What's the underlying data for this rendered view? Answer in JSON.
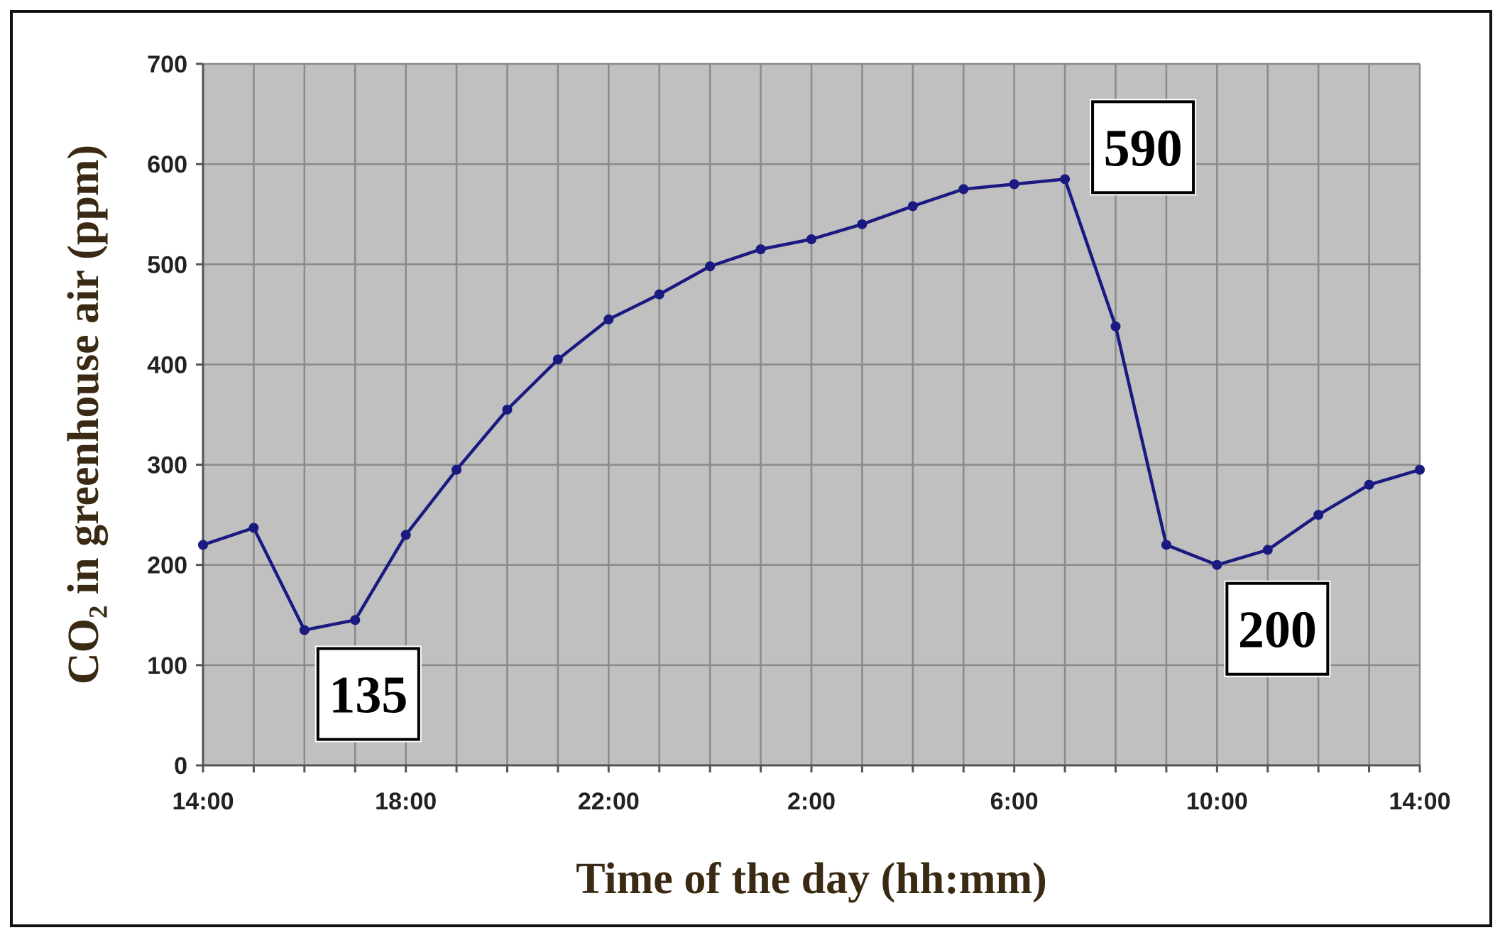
{
  "chart_data": {
    "type": "line",
    "xlabel": "Time of the day (hh:mm)",
    "ylabel": "CO₂ in greenhouse air (ppm)",
    "ylim": [
      0,
      700
    ],
    "yticks": [
      0,
      100,
      200,
      300,
      400,
      500,
      600,
      700
    ],
    "xtick_labels": [
      "14:00",
      "18:00",
      "22:00",
      "2:00",
      "6:00",
      "10:00",
      "14:00"
    ],
    "x_hours_elapsed_from_first_label": [
      0,
      4,
      8,
      12,
      16,
      20,
      24
    ],
    "grid": true,
    "plot_background": "#c0c0c0",
    "grid_color": "#8a8a8a",
    "series": [
      {
        "color": "#1a1a80",
        "x": [
          "14:00",
          "15:00",
          "16:00",
          "17:00",
          "18:00",
          "19:00",
          "20:00",
          "21:00",
          "22:00",
          "23:00",
          "0:00",
          "1:00",
          "2:00",
          "3:00",
          "4:00",
          "5:00",
          "6:00",
          "7:00",
          "8:00",
          "9:00",
          "10:00",
          "11:00",
          "12:00",
          "13:00",
          "14:00"
        ],
        "values": [
          220,
          237,
          135,
          145,
          230,
          295,
          355,
          405,
          445,
          470,
          498,
          515,
          525,
          540,
          558,
          575,
          580,
          585,
          438,
          220,
          200,
          215,
          250,
          280,
          295
        ]
      }
    ],
    "annotations": [
      {
        "text": "135",
        "point_index": 2
      },
      {
        "text": "590",
        "point_index": 17
      },
      {
        "text": "200",
        "point_index": 20
      }
    ]
  }
}
